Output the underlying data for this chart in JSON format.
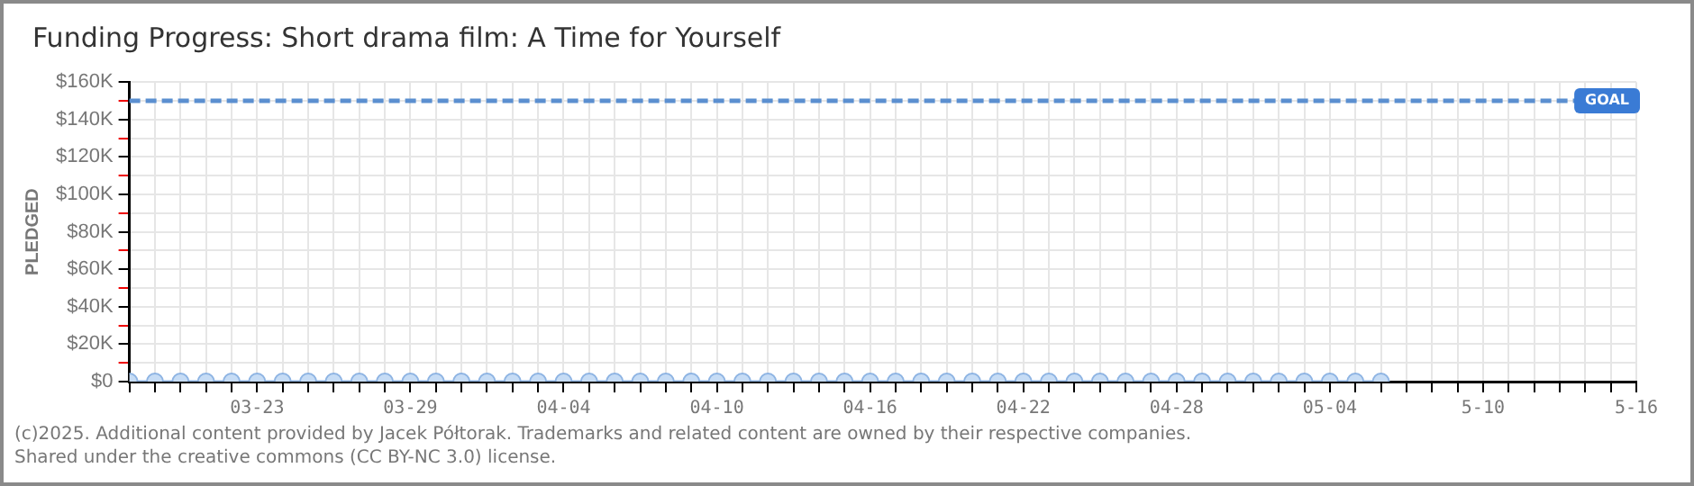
{
  "chart_data": {
    "type": "line",
    "title": "Funding Progress: Short drama film: A Time for Yourself",
    "ylabel": "PLEDGED",
    "x": [
      "--03-18",
      "--03-19",
      "--03-20",
      "--03-21",
      "--03-22",
      "--03-23",
      "--03-24",
      "--03-25",
      "--03-26",
      "--03-27",
      "--03-28",
      "--03-29",
      "--03-30",
      "--03-31",
      "--04-01",
      "--04-02",
      "--04-03",
      "--04-04",
      "--04-05",
      "--04-06",
      "--04-07",
      "--04-08",
      "--04-09",
      "--04-10",
      "--04-11",
      "--04-12",
      "--04-13",
      "--04-14",
      "--04-15",
      "--04-16",
      "--04-17",
      "--04-18",
      "--04-19",
      "--04-20",
      "--04-21",
      "--04-22",
      "--04-23",
      "--04-24",
      "--04-25",
      "--04-26",
      "--04-27",
      "--04-28",
      "--04-29",
      "--04-30",
      "--05-01",
      "--05-02",
      "--05-03",
      "--05-04",
      "--05-05",
      "--05-06"
    ],
    "series": [
      {
        "color": "#8eb4e3",
        "values": [
          0,
          0,
          0,
          0,
          0,
          0,
          0,
          0,
          0,
          0,
          0,
          0,
          0,
          0,
          0,
          0,
          0,
          0,
          0,
          0,
          0,
          0,
          0,
          0,
          0,
          0,
          0,
          0,
          0,
          0,
          0,
          0,
          0,
          0,
          0,
          0,
          0,
          0,
          0,
          0,
          0,
          0,
          0,
          0,
          0,
          0,
          0,
          0,
          0,
          0
        ]
      }
    ],
    "marker": "circle",
    "xlim": [
      "--03-18",
      "--05-16"
    ],
    "xticks": [
      {
        "value": "--03-18",
        "label": null
      },
      {
        "value": "--03-19",
        "label": null
      },
      {
        "value": "--03-20",
        "label": null
      },
      {
        "value": "--03-21",
        "label": null
      },
      {
        "value": "--03-22",
        "label": null
      },
      {
        "value": "--03-23",
        "label": "03-23"
      },
      {
        "value": "--03-24",
        "label": null
      },
      {
        "value": "--03-25",
        "label": null
      },
      {
        "value": "--03-26",
        "label": null
      },
      {
        "value": "--03-27",
        "label": null
      },
      {
        "value": "--03-28",
        "label": null
      },
      {
        "value": "--03-29",
        "label": "03-29"
      },
      {
        "value": "--03-30",
        "label": null
      },
      {
        "value": "--03-31",
        "label": null
      },
      {
        "value": "--04-01",
        "label": null
      },
      {
        "value": "--04-02",
        "label": null
      },
      {
        "value": "--04-03",
        "label": null
      },
      {
        "value": "--04-04",
        "label": "04-04"
      },
      {
        "value": "--04-05",
        "label": null
      },
      {
        "value": "--04-06",
        "label": null
      },
      {
        "value": "--04-07",
        "label": null
      },
      {
        "value": "--04-08",
        "label": null
      },
      {
        "value": "--04-09",
        "label": null
      },
      {
        "value": "--04-10",
        "label": "04-10"
      },
      {
        "value": "--04-11",
        "label": null
      },
      {
        "value": "--04-12",
        "label": null
      },
      {
        "value": "--04-13",
        "label": null
      },
      {
        "value": "--04-14",
        "label": null
      },
      {
        "value": "--04-15",
        "label": null
      },
      {
        "value": "--04-16",
        "label": "04-16"
      },
      {
        "value": "--04-17",
        "label": null
      },
      {
        "value": "--04-18",
        "label": null
      },
      {
        "value": "--04-19",
        "label": null
      },
      {
        "value": "--04-20",
        "label": null
      },
      {
        "value": "--04-21",
        "label": null
      },
      {
        "value": "--04-22",
        "label": "04-22"
      },
      {
        "value": "--04-23",
        "label": null
      },
      {
        "value": "--04-24",
        "label": null
      },
      {
        "value": "--04-25",
        "label": null
      },
      {
        "value": "--04-26",
        "label": null
      },
      {
        "value": "--04-27",
        "label": null
      },
      {
        "value": "--04-28",
        "label": "04-28"
      },
      {
        "value": "--04-29",
        "label": null
      },
      {
        "value": "--04-30",
        "label": null
      },
      {
        "value": "--05-01",
        "label": null
      },
      {
        "value": "--05-02",
        "label": null
      },
      {
        "value": "--05-03",
        "label": null
      },
      {
        "value": "--05-04",
        "label": "05-04"
      },
      {
        "value": "--05-05",
        "label": null
      },
      {
        "value": "--05-06",
        "label": null
      },
      {
        "value": "--05-07",
        "label": null
      },
      {
        "value": "--05-08",
        "label": null
      },
      {
        "value": "--05-09",
        "label": null
      },
      {
        "value": "--05-10",
        "label": "5-10"
      },
      {
        "value": "--05-11",
        "label": null
      },
      {
        "value": "--05-12",
        "label": null
      },
      {
        "value": "--05-13",
        "label": null
      },
      {
        "value": "--05-14",
        "label": null
      },
      {
        "value": "--05-15",
        "label": null
      },
      {
        "value": "--05-16",
        "label": "5-16"
      }
    ],
    "ylim": [
      0,
      160000
    ],
    "yticks": [
      {
        "value": 0,
        "label": "$0"
      },
      {
        "value": 10000,
        "label": null
      },
      {
        "value": 20000,
        "label": "$20K"
      },
      {
        "value": 30000,
        "label": null
      },
      {
        "value": 40000,
        "label": "$40K"
      },
      {
        "value": 50000,
        "label": null
      },
      {
        "value": 60000,
        "label": "$60K"
      },
      {
        "value": 70000,
        "label": null
      },
      {
        "value": 80000,
        "label": "$80K"
      },
      {
        "value": 90000,
        "label": null
      },
      {
        "value": 100000,
        "label": "$100K"
      },
      {
        "value": 110000,
        "label": null
      },
      {
        "value": 120000,
        "label": "$120K"
      },
      {
        "value": 130000,
        "label": null
      },
      {
        "value": 140000,
        "label": "$140K"
      },
      {
        "value": 150000,
        "label": null
      },
      {
        "value": 160000,
        "label": "$160K"
      }
    ],
    "grid": true,
    "ref_lines": [
      {
        "axis": "y",
        "value": 150000,
        "label": "GOAL",
        "color": "#5b8fd0",
        "line_style": "dashed"
      }
    ],
    "annotations": [
      "(c)2025. Additional content provided by Jacek Półtorak. Trademarks and related content are owned by their respective companies.",
      "Shared under the creative commons (CC BY-NC 3.0) license."
    ]
  }
}
